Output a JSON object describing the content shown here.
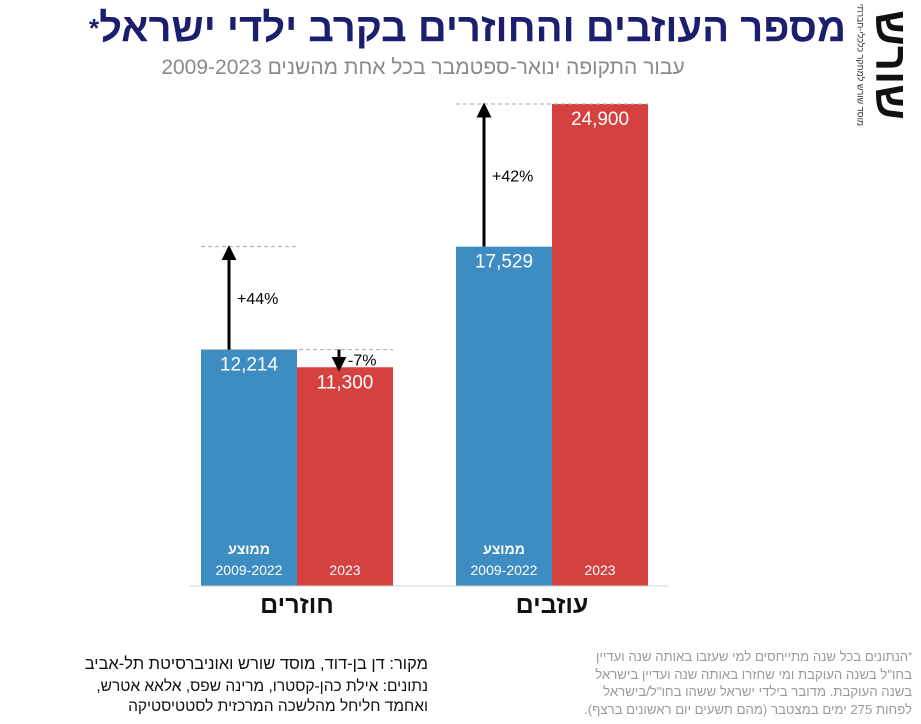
{
  "header": {
    "title": "מספר העוזבים והחוזרים בקרב ילדי ישראל",
    "title_star": "*",
    "subtitle": "עבור התקופה ינואר-ספטמבר בכל אחת מהשנים 2009-2023"
  },
  "logo": {
    "brand": "שורש",
    "tagline": "מוסד שורש למחקר כלכלי-חברתי"
  },
  "colors": {
    "average": "#3d8cc2",
    "year2023": "#d4413e",
    "title": "#1c1e6e"
  },
  "chart_data": {
    "type": "bar",
    "groups": [
      {
        "label": "חוזרים",
        "bars": [
          {
            "series": "average",
            "value": 12214,
            "value_label": "12,214",
            "caption_top": "ממוצע",
            "caption_bottom": "2009-2022"
          },
          {
            "series": "year2023",
            "value": 11300,
            "value_label": "11,300",
            "caption_top": "",
            "caption_bottom": "2023"
          }
        ],
        "annotations": [
          {
            "label": "+44%",
            "from": 12214,
            "to": 17529,
            "direction": "up"
          },
          {
            "label": "-7%",
            "from": 12214,
            "to": 11300,
            "direction": "down"
          }
        ]
      },
      {
        "label": "עוזבים",
        "bars": [
          {
            "series": "average",
            "value": 17529,
            "value_label": "17,529",
            "caption_top": "ממוצע",
            "caption_bottom": "2009-2022"
          },
          {
            "series": "year2023",
            "value": 24900,
            "value_label": "24,900",
            "caption_top": "",
            "caption_bottom": "2023"
          }
        ],
        "annotations": [
          {
            "label": "+42%",
            "from": 17529,
            "to": 24900,
            "direction": "up"
          }
        ]
      }
    ],
    "ylim": [
      0,
      24900
    ],
    "grid": false,
    "legend": "none"
  },
  "source": {
    "line1": "מקור:  דן בן-דוד, מוסד שורש ואוניברסיטת תל-אביב",
    "line2": "נתונים: אילת כהן-קסטרו, מרינה שפס, אלאא אטרש,",
    "line3": "ואחמד חליחל מהלשכה המרכזית לסטטיסטיקה"
  },
  "footnote": {
    "star": "*",
    "line1": "הנתונים בכל שנה מתייחסים למי שעזבו באותה שנה ועדיין",
    "line2": "בחו\"ל בשנה העוקבת ומי שחזרו באותה שנה ועדיין בישראל",
    "line3": "בשנה העוקבת. מדובר בילדי ישראל ששהו בחו\"ל/בישראל",
    "line4": "לפחות 275 ימים במצטבר (מהם תשעים יום ראשונים ברצף)."
  }
}
